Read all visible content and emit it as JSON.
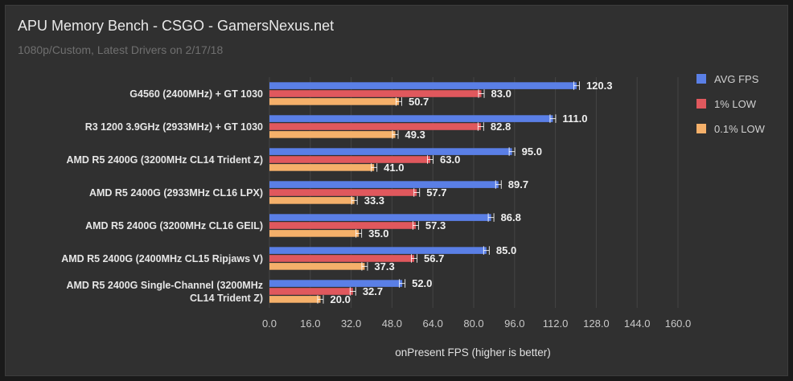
{
  "chart_data": {
    "type": "bar",
    "orientation": "horizontal",
    "title": "APU Memory Bench - CSGO - GamersNexus.net",
    "subtitle": "1080p/Custom, Latest Drivers on 2/17/18",
    "xlabel": "onPresent FPS (higher is better)",
    "ylabel": "",
    "xlim": [
      0,
      160
    ],
    "xticks": [
      "0.0",
      "16.0",
      "32.0",
      "48.0",
      "64.0",
      "80.0",
      "96.0",
      "112.0",
      "128.0",
      "144.0",
      "160.0"
    ],
    "grid": true,
    "legend_position": "right",
    "categories": [
      "G4560 (2400MHz) + GT 1030",
      "R3 1200 3.9GHz (2933MHz) + GT 1030",
      "AMD R5 2400G (3200MHz CL14 Trident Z)",
      "AMD R5 2400G (2933MHz CL16 LPX)",
      "AMD R5 2400G (3200MHz CL16 GEIL)",
      "AMD R5 2400G (2400MHz CL15 Ripjaws V)",
      "AMD R5 2400G Single-Channel (3200MHz CL14 Trident Z)"
    ],
    "category_lines": [
      [
        "G4560 (2400MHz) + GT 1030"
      ],
      [
        "R3 1200 3.9GHz (2933MHz) + GT 1030"
      ],
      [
        "AMD R5 2400G (3200MHz CL14 Trident Z)"
      ],
      [
        "AMD R5 2400G (2933MHz CL16 LPX)"
      ],
      [
        "AMD R5 2400G (3200MHz CL16 GEIL)"
      ],
      [
        "AMD R5 2400G (2400MHz CL15 Ripjaws V)"
      ],
      [
        "AMD R5 2400G Single-Channel (3200MHz",
        "CL14 Trident Z)"
      ]
    ],
    "series": [
      {
        "name": "AVG FPS",
        "color": "#5a7fe6",
        "values": [
          120.3,
          111.0,
          95.0,
          89.7,
          86.8,
          85.0,
          52.0
        ],
        "labels": [
          "120.3",
          "111.0",
          "95.0",
          "89.7",
          "86.8",
          "85.0",
          "52.0"
        ]
      },
      {
        "name": "1% LOW",
        "color": "#e0585d",
        "values": [
          83.0,
          82.8,
          63.0,
          57.7,
          57.3,
          56.7,
          32.7
        ],
        "labels": [
          "83.0",
          "82.8",
          "63.0",
          "57.7",
          "57.3",
          "56.7",
          "32.7"
        ]
      },
      {
        "name": "0.1% LOW",
        "color": "#f5b06a",
        "values": [
          50.7,
          49.3,
          41.0,
          33.3,
          35.0,
          37.3,
          20.0
        ],
        "labels": [
          "50.7",
          "49.3",
          "41.0",
          "33.3",
          "35.0",
          "37.3",
          "20.0"
        ]
      }
    ]
  }
}
